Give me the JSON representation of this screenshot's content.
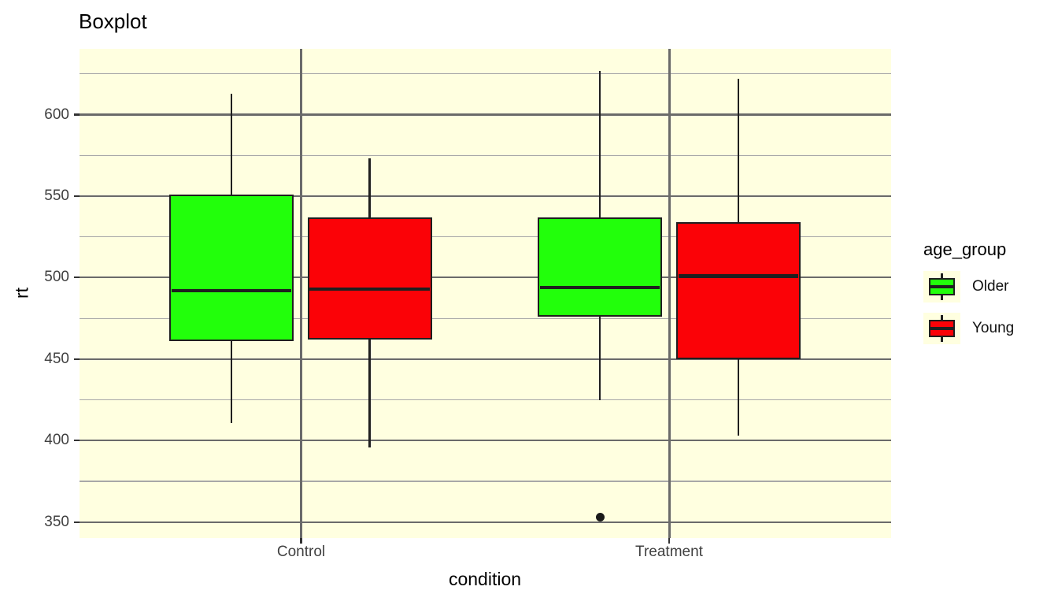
{
  "chart_data": {
    "type": "boxplot",
    "title": "Boxplot",
    "xlabel": "condition",
    "ylabel": "rt",
    "categories": [
      "Control",
      "Treatment"
    ],
    "y_axis": {
      "ticks": [
        350,
        400,
        450,
        500,
        550,
        600
      ],
      "minor_ticks": [
        375,
        425,
        475,
        525,
        575,
        625
      ],
      "range": [
        340,
        640
      ]
    },
    "legend": {
      "title": "age_group",
      "position": "right",
      "entries": [
        {
          "label": "Older",
          "color": "#22ff0b"
        },
        {
          "label": "Young",
          "color": "#fb0207"
        }
      ]
    },
    "series": [
      {
        "condition": "Control",
        "age_group": "Older",
        "color": "#22ff0b",
        "whisker_low": 411,
        "q1": 461,
        "median": 492,
        "q3": 551,
        "whisker_high": 613,
        "outliers": []
      },
      {
        "condition": "Control",
        "age_group": "Young",
        "color": "#fb0207",
        "whisker_low": 396,
        "q1": 462,
        "median": 493,
        "q3": 537,
        "whisker_high": 573,
        "outliers": []
      },
      {
        "condition": "Treatment",
        "age_group": "Older",
        "color": "#22ff0b",
        "whisker_low": 425,
        "q1": 476,
        "median": 494,
        "q3": 537,
        "whisker_high": 627,
        "outliers": [
          353
        ]
      },
      {
        "condition": "Treatment",
        "age_group": "Young",
        "color": "#fb0207",
        "whisker_low": 403,
        "q1": 450,
        "median": 501,
        "q3": 534,
        "whisker_high": 622,
        "outliers": []
      }
    ],
    "style": {
      "panel_background": "#ffffe0",
      "grid_major_color": "#6a6a6a",
      "grid_minor_color": "#a8a8a8",
      "box_outline_color": "#1f1f1f",
      "axis_text_color": "#404040",
      "layout": {
        "grid": "on",
        "legend_position": "right"
      }
    }
  }
}
